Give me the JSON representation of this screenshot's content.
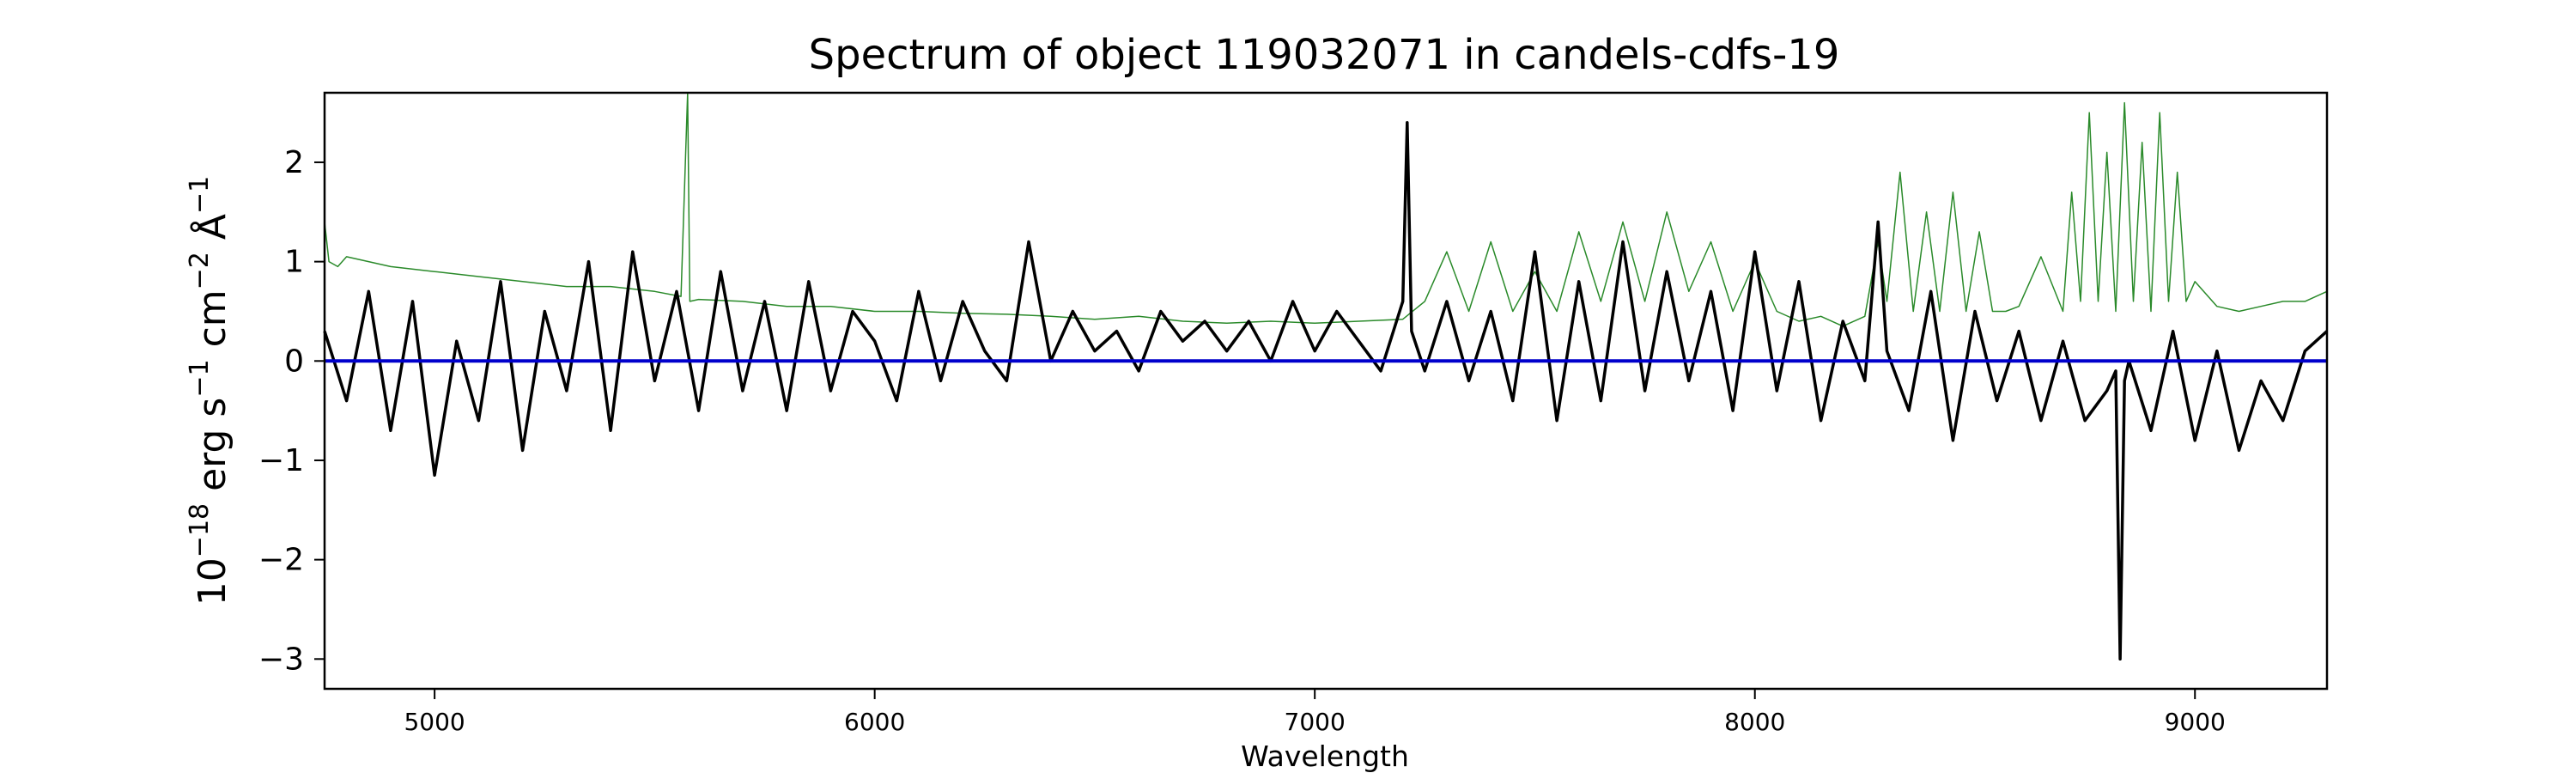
{
  "chart_data": {
    "type": "line",
    "title": "Spectrum of object 119032071 in candels-cdfs-19",
    "xlabel": "Wavelength",
    "ylabel": {
      "base": "10",
      "exp1": "−18",
      "mid1": " erg s",
      "exp2": "−1",
      "mid2": " cm",
      "exp3": "−2",
      "mid3": " Å",
      "exp4": "−1"
    },
    "xlim": [
      4750,
      9300
    ],
    "ylim": [
      -3.3,
      2.7
    ],
    "xticks": [
      5000,
      6000,
      7000,
      8000,
      9000
    ],
    "yticks": [
      2,
      1,
      0,
      -1,
      -2,
      -3
    ],
    "ytick_labels": [
      "2",
      "1",
      "0",
      "−1",
      "−2",
      "−3"
    ],
    "grid": false,
    "series": [
      {
        "role": "flux",
        "color": "#000000",
        "x": [
          4750,
          4800,
          4850,
          4900,
          4950,
          5000,
          5050,
          5100,
          5150,
          5200,
          5250,
          5300,
          5350,
          5400,
          5450,
          5500,
          5550,
          5600,
          5650,
          5700,
          5750,
          5800,
          5850,
          5900,
          5950,
          6000,
          6050,
          6100,
          6150,
          6200,
          6250,
          6300,
          6350,
          6400,
          6450,
          6500,
          6550,
          6600,
          6650,
          6700,
          6750,
          6800,
          6850,
          6900,
          6950,
          7000,
          7050,
          7100,
          7150,
          7200,
          7210,
          7220,
          7250,
          7300,
          7350,
          7400,
          7450,
          7500,
          7550,
          7600,
          7650,
          7700,
          7750,
          7800,
          7850,
          7900,
          7950,
          8000,
          8050,
          8100,
          8150,
          8200,
          8250,
          8280,
          8300,
          8350,
          8400,
          8450,
          8500,
          8550,
          8600,
          8650,
          8700,
          8750,
          8800,
          8820,
          8830,
          8840,
          8850,
          8900,
          8950,
          9000,
          9050,
          9100,
          9150,
          9200,
          9250,
          9300
        ],
        "y": [
          0.3,
          -0.4,
          0.7,
          -0.7,
          0.6,
          -1.15,
          0.2,
          -0.6,
          0.8,
          -0.9,
          0.5,
          -0.3,
          1.0,
          -0.7,
          1.1,
          -0.2,
          0.7,
          -0.5,
          0.9,
          -0.3,
          0.6,
          -0.5,
          0.8,
          -0.3,
          0.5,
          0.2,
          -0.4,
          0.7,
          -0.2,
          0.6,
          0.1,
          -0.2,
          1.2,
          0.0,
          0.5,
          0.1,
          0.3,
          -0.1,
          0.5,
          0.2,
          0.4,
          0.1,
          0.4,
          0.0,
          0.6,
          0.1,
          0.5,
          0.2,
          -0.1,
          0.6,
          2.4,
          0.3,
          -0.1,
          0.6,
          -0.2,
          0.5,
          -0.4,
          1.1,
          -0.6,
          0.8,
          -0.4,
          1.2,
          -0.3,
          0.9,
          -0.2,
          0.7,
          -0.5,
          1.1,
          -0.3,
          0.8,
          -0.6,
          0.4,
          -0.2,
          1.4,
          0.1,
          -0.5,
          0.7,
          -0.8,
          0.5,
          -0.4,
          0.3,
          -0.6,
          0.2,
          -0.6,
          -0.3,
          -0.1,
          -3.0,
          -0.2,
          0.0,
          -0.7,
          0.3,
          -0.8,
          0.1,
          -0.9,
          -0.2,
          -0.6,
          0.1,
          0.3
        ]
      },
      {
        "role": "error",
        "color": "#2a8a2a",
        "x": [
          4750,
          4760,
          4780,
          4800,
          4900,
          5000,
          5100,
          5200,
          5300,
          5400,
          5500,
          5560,
          5575,
          5580,
          5600,
          5700,
          5800,
          5900,
          6000,
          6100,
          6200,
          6300,
          6400,
          6500,
          6600,
          6700,
          6800,
          6900,
          7000,
          7100,
          7200,
          7250,
          7300,
          7350,
          7400,
          7450,
          7500,
          7550,
          7600,
          7650,
          7700,
          7750,
          7800,
          7850,
          7900,
          7950,
          8000,
          8050,
          8100,
          8150,
          8200,
          8250,
          8280,
          8300,
          8330,
          8360,
          8390,
          8420,
          8450,
          8480,
          8510,
          8540,
          8570,
          8600,
          8650,
          8700,
          8720,
          8740,
          8760,
          8780,
          8800,
          8820,
          8840,
          8860,
          8880,
          8900,
          8920,
          8940,
          8960,
          8980,
          9000,
          9050,
          9100,
          9150,
          9200,
          9250,
          9300
        ],
        "y": [
          1.4,
          1.0,
          0.95,
          1.05,
          0.95,
          0.9,
          0.85,
          0.8,
          0.75,
          0.75,
          0.7,
          0.65,
          2.7,
          0.6,
          0.62,
          0.6,
          0.55,
          0.55,
          0.5,
          0.5,
          0.48,
          0.47,
          0.45,
          0.42,
          0.45,
          0.4,
          0.38,
          0.4,
          0.38,
          0.4,
          0.42,
          0.6,
          1.1,
          0.5,
          1.2,
          0.5,
          0.9,
          0.5,
          1.3,
          0.6,
          1.4,
          0.6,
          1.5,
          0.7,
          1.2,
          0.5,
          1.0,
          0.5,
          0.4,
          0.45,
          0.35,
          0.45,
          1.2,
          0.6,
          1.9,
          0.5,
          1.5,
          0.5,
          1.7,
          0.5,
          1.3,
          0.5,
          0.5,
          0.55,
          1.05,
          0.5,
          1.7,
          0.6,
          2.5,
          0.6,
          2.1,
          0.5,
          2.6,
          0.6,
          2.2,
          0.5,
          2.5,
          0.6,
          1.9,
          0.6,
          0.8,
          0.55,
          0.5,
          0.55,
          0.6,
          0.6,
          0.7
        ]
      },
      {
        "role": "model",
        "color": "#0000cc",
        "x": [
          4750,
          9300
        ],
        "y": [
          0.0,
          0.0
        ]
      }
    ]
  }
}
